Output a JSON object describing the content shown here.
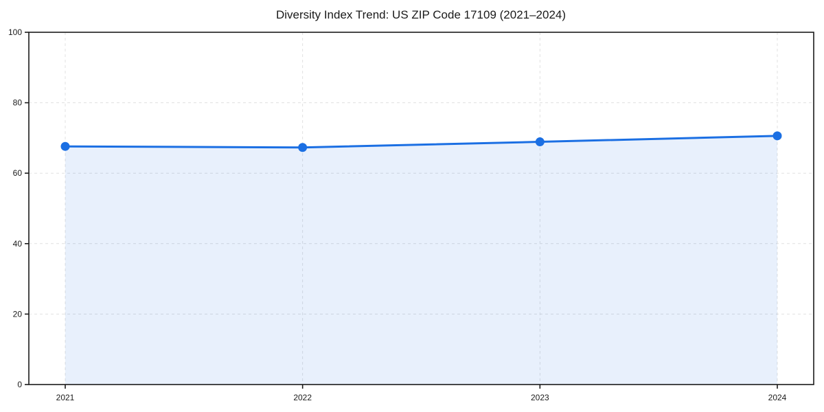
{
  "chart_data": {
    "type": "line",
    "title": "Diversity Index Trend: US ZIP Code 17109 (2021–2024)",
    "x": [
      2021,
      2022,
      2023,
      2024
    ],
    "series": [
      {
        "name": "Diversity Index",
        "values": [
          67.6,
          67.3,
          68.9,
          70.6
        ]
      }
    ],
    "xlabel": "",
    "ylabel": "",
    "ylim": [
      0,
      100
    ],
    "yticks": [
      0,
      20,
      40,
      60,
      80,
      100
    ],
    "xticks": [
      "2021",
      "2022",
      "2023",
      "2024"
    ],
    "grid": "dashed, horizontal and vertical",
    "legend_position": "none",
    "area_fill": true,
    "marker": "circle",
    "colors": {
      "line": "#1b6fe3",
      "marker": "#1b6fe3",
      "fill": "rgba(27,111,227,0.10)",
      "grid": "#e0e0e0",
      "spine": "#1a1a1a",
      "text": "#1a1a1a",
      "background": "#ffffff"
    }
  }
}
